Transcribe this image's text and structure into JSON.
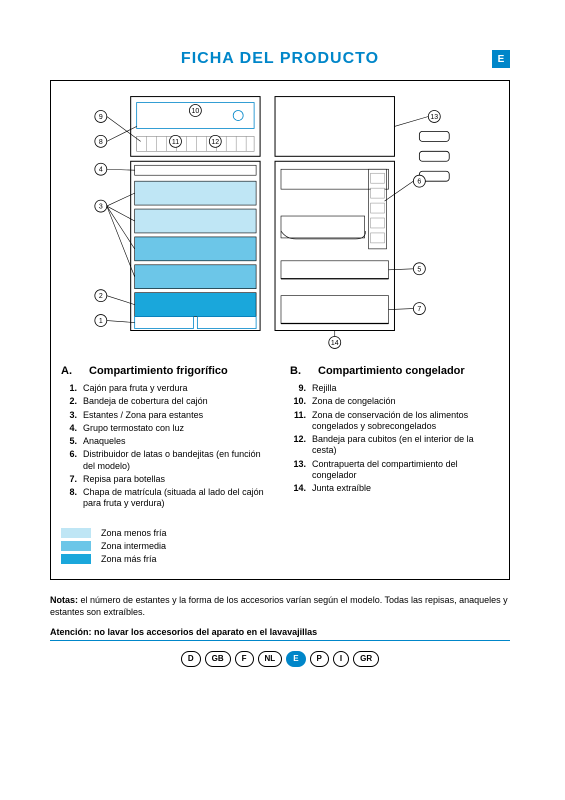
{
  "title": "FICHA DEL PRODUCTO",
  "lang_badge": "E",
  "diagram": {
    "callouts_left": [
      "9",
      "8",
      "4",
      "3",
      "2",
      "1"
    ],
    "callouts_center": [
      "10",
      "11",
      "12"
    ],
    "callouts_mid": [
      "6",
      "5",
      "7",
      "14"
    ],
    "callouts_right": [
      "13"
    ],
    "colors": {
      "outline": "#000000",
      "shelf_light": "#bfe6f5",
      "shelf_mid": "#6cc6e8",
      "shelf_dark": "#1aa7db",
      "tray_border": "#0086c9",
      "bg": "#ffffff",
      "leader": "#000000"
    }
  },
  "section_a": {
    "letter": "A.",
    "heading": "Compartimiento frigorífico",
    "items": [
      {
        "n": "1.",
        "t": "Cajón para fruta y verdura"
      },
      {
        "n": "2.",
        "t": "Bandeja de cobertura del cajón"
      },
      {
        "n": "3.",
        "t": "Estantes / Zona para estantes"
      },
      {
        "n": "4.",
        "t": "Grupo termostato con luz"
      },
      {
        "n": "5.",
        "t": "Anaqueles"
      },
      {
        "n": "6.",
        "t": "Distribuidor de latas o bandejitas (en función del modelo)"
      },
      {
        "n": "7.",
        "t": "Repisa para botellas"
      },
      {
        "n": "8.",
        "t": "Chapa de matrícula (situada al lado del cajón para fruta y verdura)"
      }
    ]
  },
  "section_b": {
    "letter": "B.",
    "heading": "Compartimiento congelador",
    "items": [
      {
        "n": "9.",
        "t": "Rejilla"
      },
      {
        "n": "10.",
        "t": "Zona de congelación"
      },
      {
        "n": "11.",
        "t": "Zona de conservación de los alimentos congelados y sobrecongelados"
      },
      {
        "n": "12.",
        "t": "Bandeja para cubitos (en el interior de la cesta)"
      },
      {
        "n": "13.",
        "t": "Contrapuerta del compartimiento del congelador"
      },
      {
        "n": "14.",
        "t": "Junta extraíble"
      }
    ]
  },
  "legend": {
    "rows": [
      {
        "color": "#bfe6f5",
        "label": "Zona menos fría"
      },
      {
        "color": "#6cc6e8",
        "label": "Zona intermedia"
      },
      {
        "color": "#1aa7db",
        "label": "Zona más fría"
      }
    ]
  },
  "notes": {
    "lead": "Notas:",
    "body": "el número de estantes y la forma de los accesorios varían según el modelo. Todas las repisas, anaqueles y estantes son extraíbles."
  },
  "warning": {
    "lead": "Atención:",
    "body": "no lavar los accesorios del aparato en el lavavajillas"
  },
  "footer_langs": [
    "D",
    "GB",
    "F",
    "NL",
    "E",
    "P",
    "I",
    "GR"
  ],
  "footer_active": "E"
}
